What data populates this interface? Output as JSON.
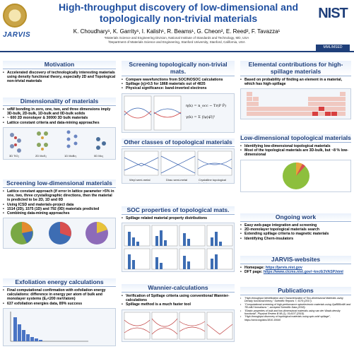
{
  "header": {
    "title": "High-throughput discovery of low-dimensional and topologically non-trivial materials",
    "authors": "K. Choudhary¹, K. Garrity¹, I. Kalish¹, R. Beams¹, G. Cheon², E. Reed², F. Tavazza¹",
    "affil1": "¹Materials Science and Engineering Division, National Institute of Standards and Technology, MD, USA",
    "affil2": "²Department of Materials Science and Engineering, Stanford University, Stanford, California, USA",
    "logo_text": "JARVIS",
    "nist_text": "NIST",
    "mml_text": "MML/MSED"
  },
  "motivation": {
    "title": "Motivation",
    "items": [
      "Accelerated discovery of technologically interesting materials using density functional theory, especially 2D and Topological non-trivial materials"
    ]
  },
  "dimensionality": {
    "title": "Dimensionality of materials",
    "items": [
      "vdW bonding in zero, one, two, and three dimensions imply 3D-bulk, 2D-bulk, 1D-bulk and 0D-bulk solids",
      "~ 600 2D monolayer & 30000 3D bulk materials",
      "Lattice constant criteria and data-mining approaches"
    ],
    "labels": [
      "3D TiO₂",
      "2D MoS₂",
      "1D MoBr₃",
      "0D Mo₂"
    ]
  },
  "screening_low": {
    "title": "Screening low-dimensional materials",
    "items": [
      "Lattice constant approach (if error in lattice parameter >5% in one, two, three crystallographic directions, then the material is predicted to be 2D, 1D and 0D",
      "Using ICSD and materials-project data",
      "1514 (2D), 1575 (1D) and 792 (0D) materials predicted",
      "Combining data-mining approaches"
    ]
  },
  "exfoliation": {
    "title": "Exfoliation energy calculations",
    "items": [
      "Final computational confirmation with exfoliation energy calculations: difference in energy per atom of bulk and monolayer systems (Eₓ<200 meV/atom)",
      "637 exfoliation energies data, 89% success"
    ]
  },
  "screening_topo": {
    "title": "Screening topologically non-trivial mats.",
    "items": [
      "Compare wavefunctions from SOC/NOSOC calculations",
      "Spillage (η)>0.5 for 1868 materials out of 4835",
      "Physical significance: band-inverted electrons"
    ]
  },
  "other_classes": {
    "title": "Other classes of topological materials",
    "labels": [
      "Weyl semi-metal",
      "Dirac semi-metal",
      "Crystalline topological insulator"
    ]
  },
  "soc": {
    "title": "SOC properties of topological mats.",
    "items": [
      "Spillage related material property distributions"
    ]
  },
  "wannier": {
    "title": "Wannier-calculations",
    "items": [
      "Verification of Spillage criteria using conventional Wannier-calculations",
      "Spillage method is a much faster tool"
    ]
  },
  "elemental": {
    "title": "Elemental contributions for high-spillage materials",
    "items": [
      "Based on probability of finding an element in a material, which has high-spillage"
    ]
  },
  "lowdim_topo": {
    "title": "Low-dimensional topological materials",
    "items": [
      "Identifying low-dimensional topological materials",
      "Most of the topological materials are 3D-bulk, but ~8 % low-dimensional"
    ]
  },
  "ongoing": {
    "title": "Ongoing work",
    "items": [
      "Easy web-page integration and screening",
      "2D-monolayer topological materials search",
      "Extending spillage criteria to magnetic materials",
      "Identifying Chern-insulators"
    ]
  },
  "websites": {
    "title": "JARVIS-websites",
    "homepage_label": "Homepage:",
    "homepage_url": "https://jarvis.nist.gov",
    "dft_label": "DFT page:",
    "dft_url": "https://www.ctcms.nist.gov/~knc6/JVASP.html"
  },
  "publications": {
    "title": "Publications",
    "items": [
      "\"High-throughput Identification and Characterization of Two-dimensional Materials using Density functional theory,\" Scientific Reports 7, 5179 (2017).",
      "\"Computational screening of high-performance optoelectronic materials using OptB88vdW and TB-mBJ formalisms \", accepted Scientific Data (2018).",
      "\"Elastic properties of bulk and low-dimensional materials using van der Waals density functional\", Physical Review B 98 (1), 014107 (2018).",
      "\"High-throughput discovery of topological materials using spin-orbit spillage\", https://arxiv.org/abs/1810.10640"
    ]
  },
  "colors": {
    "title_blue": "#1f4fa0",
    "section_blue": "#1f3f7a"
  }
}
